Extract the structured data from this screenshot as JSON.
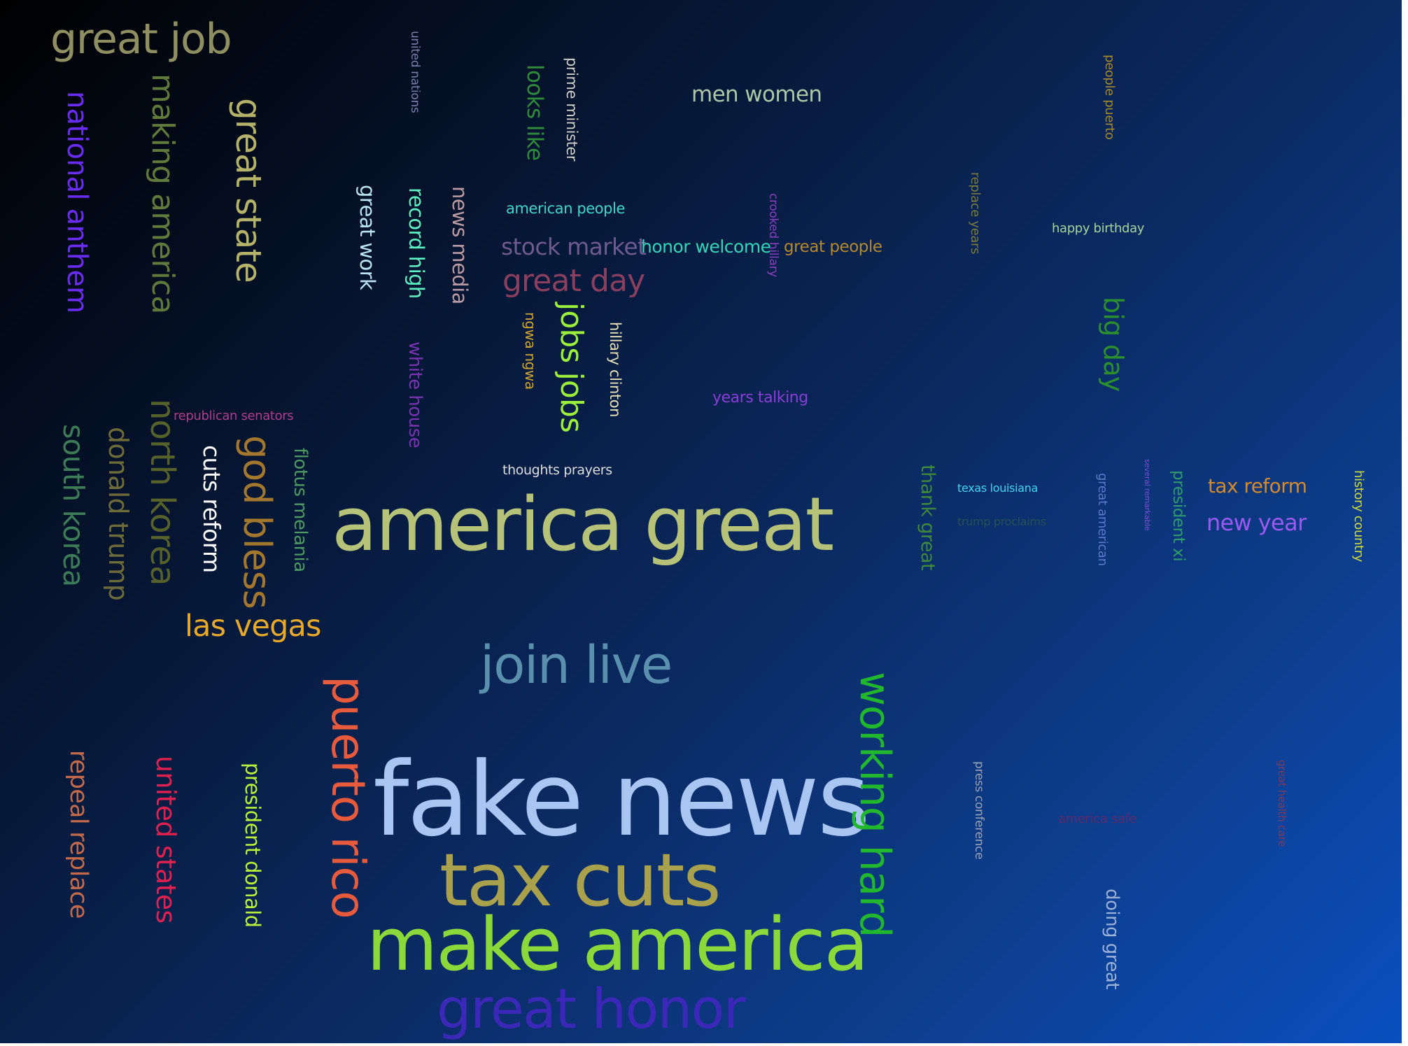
{
  "words": [
    {
      "id": "great-job",
      "text": "great job",
      "color": "#8f8f62",
      "rotated": false
    },
    {
      "id": "national-anthem",
      "text": "national anthem",
      "color": "#6a2cf0",
      "rotated": true
    },
    {
      "id": "making-america",
      "text": "making america",
      "color": "#5f7a3a",
      "rotated": true
    },
    {
      "id": "great-state",
      "text": "great state",
      "color": "#b5b26a",
      "rotated": true
    },
    {
      "id": "united-nations",
      "text": "united nations",
      "color": "#7b7fae",
      "rotated": true
    },
    {
      "id": "looks-like",
      "text": "looks like",
      "color": "#2f8c3a",
      "rotated": true
    },
    {
      "id": "prime-minister",
      "text": "prime minister",
      "color": "#d0cfc8",
      "rotated": true
    },
    {
      "id": "men-women",
      "text": "men women",
      "color": "#a9c9a6",
      "rotated": false
    },
    {
      "id": "people-puerto",
      "text": "people puerto",
      "color": "#a8892a",
      "rotated": true
    },
    {
      "id": "great-work",
      "text": "great work",
      "color": "#b9e3f0",
      "rotated": true
    },
    {
      "id": "record-high",
      "text": "record high",
      "color": "#5df0c0",
      "rotated": true
    },
    {
      "id": "news-media",
      "text": "news media",
      "color": "#b99aa2",
      "rotated": true
    },
    {
      "id": "american-people",
      "text": "american people",
      "color": "#3ed6c8",
      "rotated": false
    },
    {
      "id": "stock-market",
      "text": "stock market",
      "color": "#6e5a8e",
      "rotated": false
    },
    {
      "id": "honor-welcome",
      "text": "honor welcome",
      "color": "#33d4b8",
      "rotated": false
    },
    {
      "id": "crooked-hillary",
      "text": "crooked hillary",
      "color": "#8a3fc0",
      "rotated": true
    },
    {
      "id": "great-people",
      "text": "great people",
      "color": "#b5892e",
      "rotated": false
    },
    {
      "id": "replace-years",
      "text": "replace years",
      "color": "#7b7b3c",
      "rotated": true
    },
    {
      "id": "happy-birthday",
      "text": "happy birthday",
      "color": "#a6d49a",
      "rotated": false
    },
    {
      "id": "great-day",
      "text": "great day",
      "color": "#8a3f5e",
      "rotated": false
    },
    {
      "id": "big-day",
      "text": "big day",
      "color": "#2a8f2c",
      "rotated": true
    },
    {
      "id": "white-house",
      "text": "white house",
      "color": "#7a33b0",
      "rotated": true
    },
    {
      "id": "ngwa",
      "text": "ngwa ngwa",
      "color": "#cfa431",
      "rotated": true
    },
    {
      "id": "jobs-jobs",
      "text": "jobs jobs",
      "color": "#9cf03c",
      "rotated": true
    },
    {
      "id": "hillary-clinton",
      "text": "hillary clinton",
      "color": "#e7e0b6",
      "rotated": true
    },
    {
      "id": "years-talking",
      "text": "years talking",
      "color": "#8a3ed6",
      "rotated": false
    },
    {
      "id": "republican-senators",
      "text": "republican senators",
      "color": "#b03d8a",
      "rotated": false
    },
    {
      "id": "south-korea",
      "text": "south korea",
      "color": "#3c7c56",
      "rotated": true
    },
    {
      "id": "donald-trump",
      "text": "donald trump",
      "color": "#6e6b3a",
      "rotated": true
    },
    {
      "id": "north-korea",
      "text": "north korea",
      "color": "#57612a",
      "rotated": true
    },
    {
      "id": "cuts-reform",
      "text": "cuts reform",
      "color": "#ffffff",
      "rotated": true
    },
    {
      "id": "god-bless",
      "text": "god bless",
      "color": "#a3782e",
      "rotated": true
    },
    {
      "id": "flotus-melania",
      "text": "flotus melania",
      "color": "#4d9a62",
      "rotated": true
    },
    {
      "id": "thoughts-prayers",
      "text": "thoughts prayers",
      "color": "#dcdcdc",
      "rotated": false
    },
    {
      "id": "america-great",
      "text": "america great",
      "color": "#b5c277",
      "rotated": false
    },
    {
      "id": "thank-great",
      "text": "thank great",
      "color": "#3f8a3a",
      "rotated": true
    },
    {
      "id": "texas-louisiana",
      "text": "texas louisiana",
      "color": "#3ed6f0",
      "rotated": false
    },
    {
      "id": "trump-proclaims",
      "text": "trump proclaims",
      "color": "#2a4f52",
      "rotated": false
    },
    {
      "id": "great-american",
      "text": "great american",
      "color": "#5d7ac9",
      "rotated": true
    },
    {
      "id": "small-vertical",
      "text": "several remarkable",
      "color": "#7a4fd6",
      "rotated": true
    },
    {
      "id": "president-xi",
      "text": "president xi",
      "color": "#2f9a6a",
      "rotated": true
    },
    {
      "id": "tax-reform",
      "text": "tax reform",
      "color": "#d48a2a",
      "rotated": false
    },
    {
      "id": "new-year",
      "text": "new year",
      "color": "#9a5af0",
      "rotated": false
    },
    {
      "id": "history-country",
      "text": "history country",
      "color": "#cfd93a",
      "rotated": true
    },
    {
      "id": "las-vegas",
      "text": "las vegas",
      "color": "#e8a92b",
      "rotated": false
    },
    {
      "id": "join-live",
      "text": "join live",
      "color": "#5b8fae",
      "rotated": false
    },
    {
      "id": "puerto-rico",
      "text": "puerto rico",
      "color": "#e85a3c",
      "rotated": true
    },
    {
      "id": "working-hard",
      "text": "working hard",
      "color": "#22b82e",
      "rotated": true
    },
    {
      "id": "repeal-replace",
      "text": "repeal replace",
      "color": "#c46a4a",
      "rotated": true
    },
    {
      "id": "united-states",
      "text": "united states",
      "color": "#e0204e",
      "rotated": true
    },
    {
      "id": "president-donald",
      "text": "president donald",
      "color": "#b9f03a",
      "rotated": true
    },
    {
      "id": "fake-news",
      "text": "fake news",
      "color": "#a9c6f2",
      "rotated": false
    },
    {
      "id": "press-conference",
      "text": "press conference",
      "color": "#9aa3b5",
      "rotated": true
    },
    {
      "id": "america-safe",
      "text": "america safe",
      "color": "#5a2a6a",
      "rotated": false
    },
    {
      "id": "great-health-care",
      "text": "great health care",
      "color": "#7a3a5a",
      "rotated": true
    },
    {
      "id": "tax-cuts",
      "text": "tax cuts",
      "color": "#aaa14d",
      "rotated": false
    },
    {
      "id": "doing-great",
      "text": "doing great",
      "color": "#9ab0d6",
      "rotated": true
    },
    {
      "id": "make-america",
      "text": "make america",
      "color": "#8ad83a",
      "rotated": false
    },
    {
      "id": "great-honor",
      "text": "great honor",
      "color": "#3c28b8",
      "rotated": false
    }
  ]
}
